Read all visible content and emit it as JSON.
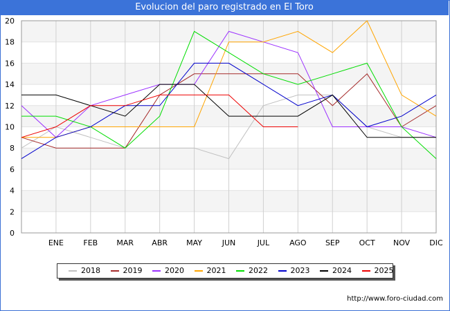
{
  "title": "Evolucion del paro registrado en El Toro",
  "footer": "http://www.foro-ciudad.com",
  "chart_data": {
    "type": "line",
    "title": "Evolucion del paro registrado en El Toro",
    "categories": [
      "",
      "ENE",
      "FEB",
      "MAR",
      "ABR",
      "MAY",
      "JUN",
      "JUL",
      "AGO",
      "SEP",
      "OCT",
      "NOV",
      "DIC"
    ],
    "ylim": [
      0,
      20
    ],
    "yticks": [
      0,
      2,
      4,
      6,
      8,
      10,
      12,
      14,
      16,
      18,
      20
    ],
    "grid": true,
    "legend_position": "bottom",
    "series": [
      {
        "name": "2018",
        "color": "#c0c0c0",
        "values": [
          8,
          10,
          9,
          8,
          8,
          8,
          7,
          12,
          13,
          13,
          10,
          9,
          9
        ]
      },
      {
        "name": "2019",
        "color": "#a52a2a",
        "values": [
          9,
          8,
          8,
          8,
          13,
          15,
          15,
          15,
          15,
          12,
          15,
          10,
          12
        ]
      },
      {
        "name": "2020",
        "color": "#9b30ff",
        "values": [
          12,
          9,
          12,
          13,
          14,
          14,
          19,
          18,
          17,
          10,
          10,
          10,
          9
        ]
      },
      {
        "name": "2021",
        "color": "#ffa500",
        "values": [
          9,
          9,
          10,
          10,
          10,
          10,
          18,
          18,
          19,
          17,
          20,
          13,
          11
        ]
      },
      {
        "name": "2022",
        "color": "#00dd00",
        "values": [
          11,
          11,
          10,
          8,
          11,
          19,
          17,
          15,
          14,
          15,
          16,
          10,
          7
        ]
      },
      {
        "name": "2023",
        "color": "#0000cc",
        "values": [
          7,
          9,
          10,
          12,
          12,
          16,
          16,
          14,
          12,
          13,
          10,
          11,
          13
        ]
      },
      {
        "name": "2024",
        "color": "#000000",
        "values": [
          13,
          13,
          12,
          11,
          14,
          14,
          11,
          11,
          11,
          13,
          9,
          9,
          9
        ]
      },
      {
        "name": "2025",
        "color": "#ee0000",
        "values": [
          9,
          10,
          12,
          12,
          13,
          13,
          13,
          10,
          10,
          null,
          null,
          null,
          null
        ]
      }
    ]
  }
}
